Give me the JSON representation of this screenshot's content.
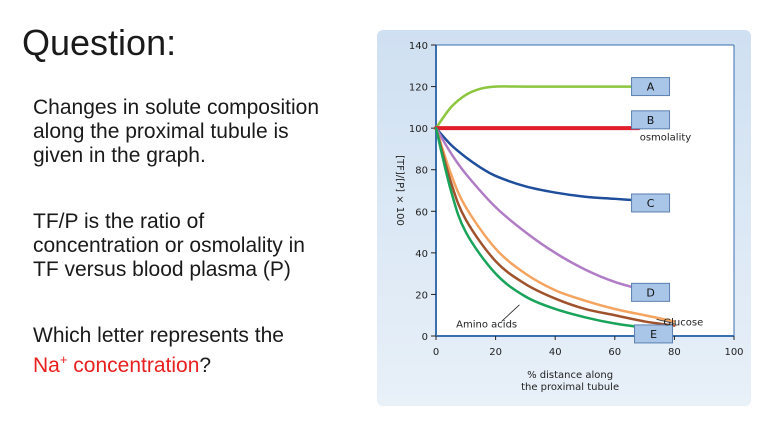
{
  "slide": {
    "title": "Question:",
    "para1": "Changes in solute composition\nalong the proximal tubule is\ngiven in the graph.",
    "para2": "TF/P is the ratio of\nconcentration or osmolality in\nTF versus blood plasma (P)",
    "para3_prefix": "Which letter represents the",
    "para3_na": "Na",
    "para3_sup": "+",
    "para3_red_rest": " concentration",
    "para3_suffix": "?"
  },
  "colors": {
    "A": "#8cc63f",
    "B": "#e11d2a",
    "C": "#1f4e9c",
    "D": "#b07cc6",
    "glucose": "#f4a460",
    "E": "#a0522d",
    "amino": "#1aa35a",
    "box_fill": "#a9c6e8",
    "axis": "#3a6fb0"
  },
  "chart_data": {
    "type": "line",
    "xlabel": "% distance along the proximal tubule",
    "ylabel": "[TF]/[P] × 100",
    "xlim": [
      0,
      100
    ],
    "ylim": [
      0,
      140
    ],
    "x_ticks": [
      "0",
      "20",
      "40",
      "60",
      "80",
      "100"
    ],
    "y_ticks": [
      "0",
      "20",
      "40",
      "60",
      "80",
      "100",
      "120",
      "140"
    ],
    "series": [
      {
        "key": "A",
        "x": [
          0,
          5,
          10,
          15,
          20,
          30,
          40,
          50,
          60,
          68
        ],
        "y": [
          100,
          110,
          116,
          119,
          120,
          120,
          120,
          120,
          120,
          120
        ]
      },
      {
        "key": "B",
        "x": [
          0,
          68
        ],
        "y": [
          100,
          100
        ]
      },
      {
        "key": "C",
        "x": [
          0,
          5,
          10,
          15,
          20,
          30,
          40,
          50,
          60,
          70
        ],
        "y": [
          100,
          92,
          86,
          81,
          77,
          72,
          69,
          67,
          66,
          65
        ]
      },
      {
        "key": "D",
        "x": [
          0,
          5,
          10,
          20,
          30,
          40,
          50,
          60,
          70
        ],
        "y": [
          100,
          88,
          78,
          62,
          50,
          40,
          32,
          26,
          22
        ]
      },
      {
        "key": "glucose",
        "x": [
          0,
          5,
          10,
          20,
          30,
          40,
          50,
          60,
          70,
          80
        ],
        "y": [
          100,
          78,
          62,
          42,
          30,
          22,
          17,
          13,
          10,
          7
        ]
      },
      {
        "key": "E",
        "x": [
          0,
          5,
          10,
          20,
          30,
          40,
          50,
          60,
          70,
          80
        ],
        "y": [
          100,
          74,
          56,
          36,
          25,
          18,
          13,
          10,
          7,
          5
        ]
      },
      {
        "key": "amino",
        "x": [
          0,
          5,
          10,
          20,
          30,
          40,
          50,
          60,
          70
        ],
        "y": [
          100,
          70,
          50,
          30,
          19,
          13,
          9,
          6,
          4
        ]
      }
    ],
    "box_labels": [
      {
        "text": "A",
        "x": 72,
        "y": 120
      },
      {
        "text": "B",
        "x": 72,
        "y": 104
      },
      {
        "text": "C",
        "x": 72,
        "y": 64
      },
      {
        "text": "D",
        "x": 72,
        "y": 21
      },
      {
        "text": "E",
        "x": 73,
        "y": 1
      }
    ],
    "annotations": [
      {
        "text": "osmolality",
        "x": 77,
        "y": 94
      },
      {
        "text": "Amino acids",
        "x": 17,
        "y": 4
      },
      {
        "text": "Glucose",
        "x": 83,
        "y": 5
      }
    ]
  }
}
